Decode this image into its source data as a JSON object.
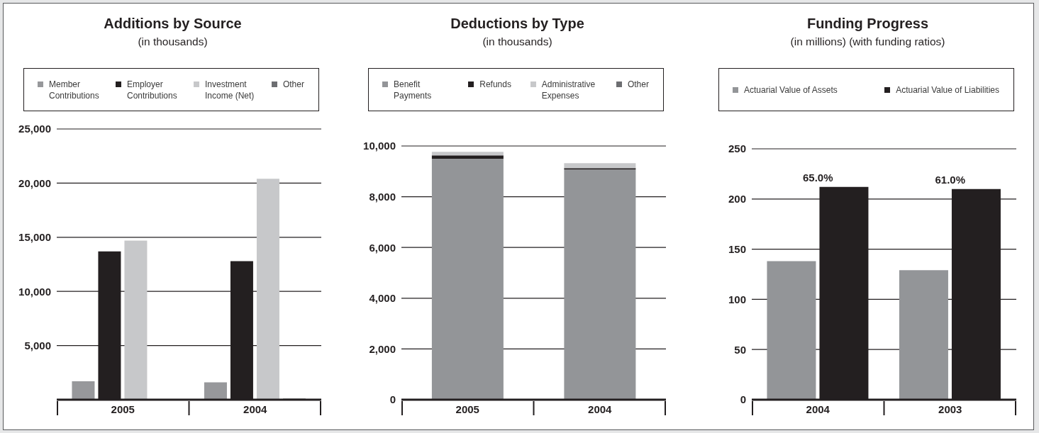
{
  "chart_data": [
    {
      "type": "bar",
      "title": "Additions by Source",
      "subtitle": "(in thousands)",
      "categories": [
        "2005",
        "2004"
      ],
      "series": [
        {
          "name": "Member Contributions",
          "color": "#97989b",
          "values": [
            1700,
            1600
          ]
        },
        {
          "name": "Employer Contributions",
          "color": "#231f20",
          "values": [
            13700,
            12800
          ]
        },
        {
          "name": "Investment Income (Net)",
          "color": "#c7c8ca",
          "values": [
            14700,
            20400
          ]
        },
        {
          "name": "Other",
          "color": "#6d6e71",
          "values": [
            0,
            100
          ]
        }
      ],
      "ylim": [
        0,
        25000
      ],
      "yticks": [
        {
          "value": 5000,
          "label": "5,000"
        },
        {
          "value": 10000,
          "label": "10,000"
        },
        {
          "value": 15000,
          "label": "15,000"
        },
        {
          "value": 20000,
          "label": "20,000"
        },
        {
          "value": 25000,
          "label": "25,000"
        }
      ],
      "grid": "y",
      "legend": "top"
    },
    {
      "type": "bar",
      "title": "Deductions by Type",
      "subtitle": "(in thousands)",
      "categories": [
        "2005",
        "2004"
      ],
      "stacked": true,
      "series": [
        {
          "name": "Benefit Payments",
          "color": "#939598",
          "values": [
            9500,
            9070
          ]
        },
        {
          "name": "Refunds",
          "color": "#231f20",
          "values": [
            130,
            60
          ]
        },
        {
          "name": "Administrative Expenses",
          "color": "#c7c8ca",
          "values": [
            140,
            190
          ]
        },
        {
          "name": "Other",
          "color": "#6d6e71",
          "values": [
            0,
            0
          ]
        }
      ],
      "ylim": [
        0,
        10000
      ],
      "yticks": [
        0,
        {
          "value": 2000,
          "label": "2,000"
        },
        {
          "value": 4000,
          "label": "4,000"
        },
        {
          "value": 6000,
          "label": "6,000"
        },
        {
          "value": 8000,
          "label": "8,000"
        },
        {
          "value": 10000,
          "label": "10,000"
        }
      ],
      "grid": "y",
      "legend": "top"
    },
    {
      "type": "bar",
      "title": "Funding Progress",
      "subtitle": "(in millions) (with funding ratios)",
      "categories": [
        "2004",
        "2003"
      ],
      "series": [
        {
          "name": "Actuarial Value of Assets",
          "color": "#939598",
          "values": [
            138,
            129
          ]
        },
        {
          "name": "Actuarial Value of Liabilities",
          "color": "#231f20",
          "values": [
            212,
            210
          ]
        }
      ],
      "ylim": [
        0,
        250
      ],
      "yticks": [
        0,
        50,
        100,
        150,
        200,
        250
      ],
      "grid": "y",
      "legend": "top",
      "annotations": [
        {
          "text": "65.0%",
          "x": "2004",
          "y": 212
        },
        {
          "text": "61.0%",
          "x": "2003",
          "y": 210
        }
      ]
    }
  ]
}
